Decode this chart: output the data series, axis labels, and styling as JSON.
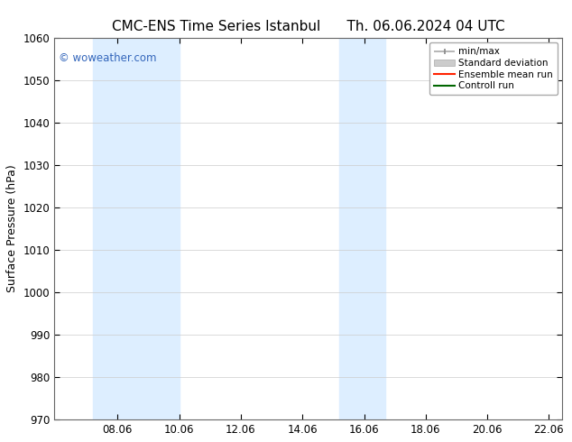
{
  "title_left": "CMC-ENS Time Series Istanbul",
  "title_right": "Th. 06.06.2024 04 UTC",
  "ylabel": "Surface Pressure (hPa)",
  "xlabel": "",
  "ylim": [
    970,
    1060
  ],
  "yticks": [
    970,
    980,
    990,
    1000,
    1010,
    1020,
    1030,
    1040,
    1050,
    1060
  ],
  "xlim_start": 6.0,
  "xlim_end": 22.5,
  "xticks": [
    8.06,
    10.06,
    12.06,
    14.06,
    16.06,
    18.06,
    20.06,
    22.06
  ],
  "xtick_labels": [
    "08.06",
    "10.06",
    "12.06",
    "14.06",
    "16.06",
    "18.06",
    "20.06",
    "22.06"
  ],
  "shaded_bands": [
    {
      "xmin": 7.25,
      "xmax": 10.06
    },
    {
      "xmin": 15.25,
      "xmax": 16.75
    }
  ],
  "shaded_color": "#ddeeff",
  "watermark_text": "© woweather.com",
  "watermark_color": "#3366bb",
  "bg_color": "#ffffff",
  "plot_bg_color": "#ffffff",
  "grid_color": "#cccccc",
  "title_fontsize": 11,
  "tick_fontsize": 8.5,
  "label_fontsize": 9
}
